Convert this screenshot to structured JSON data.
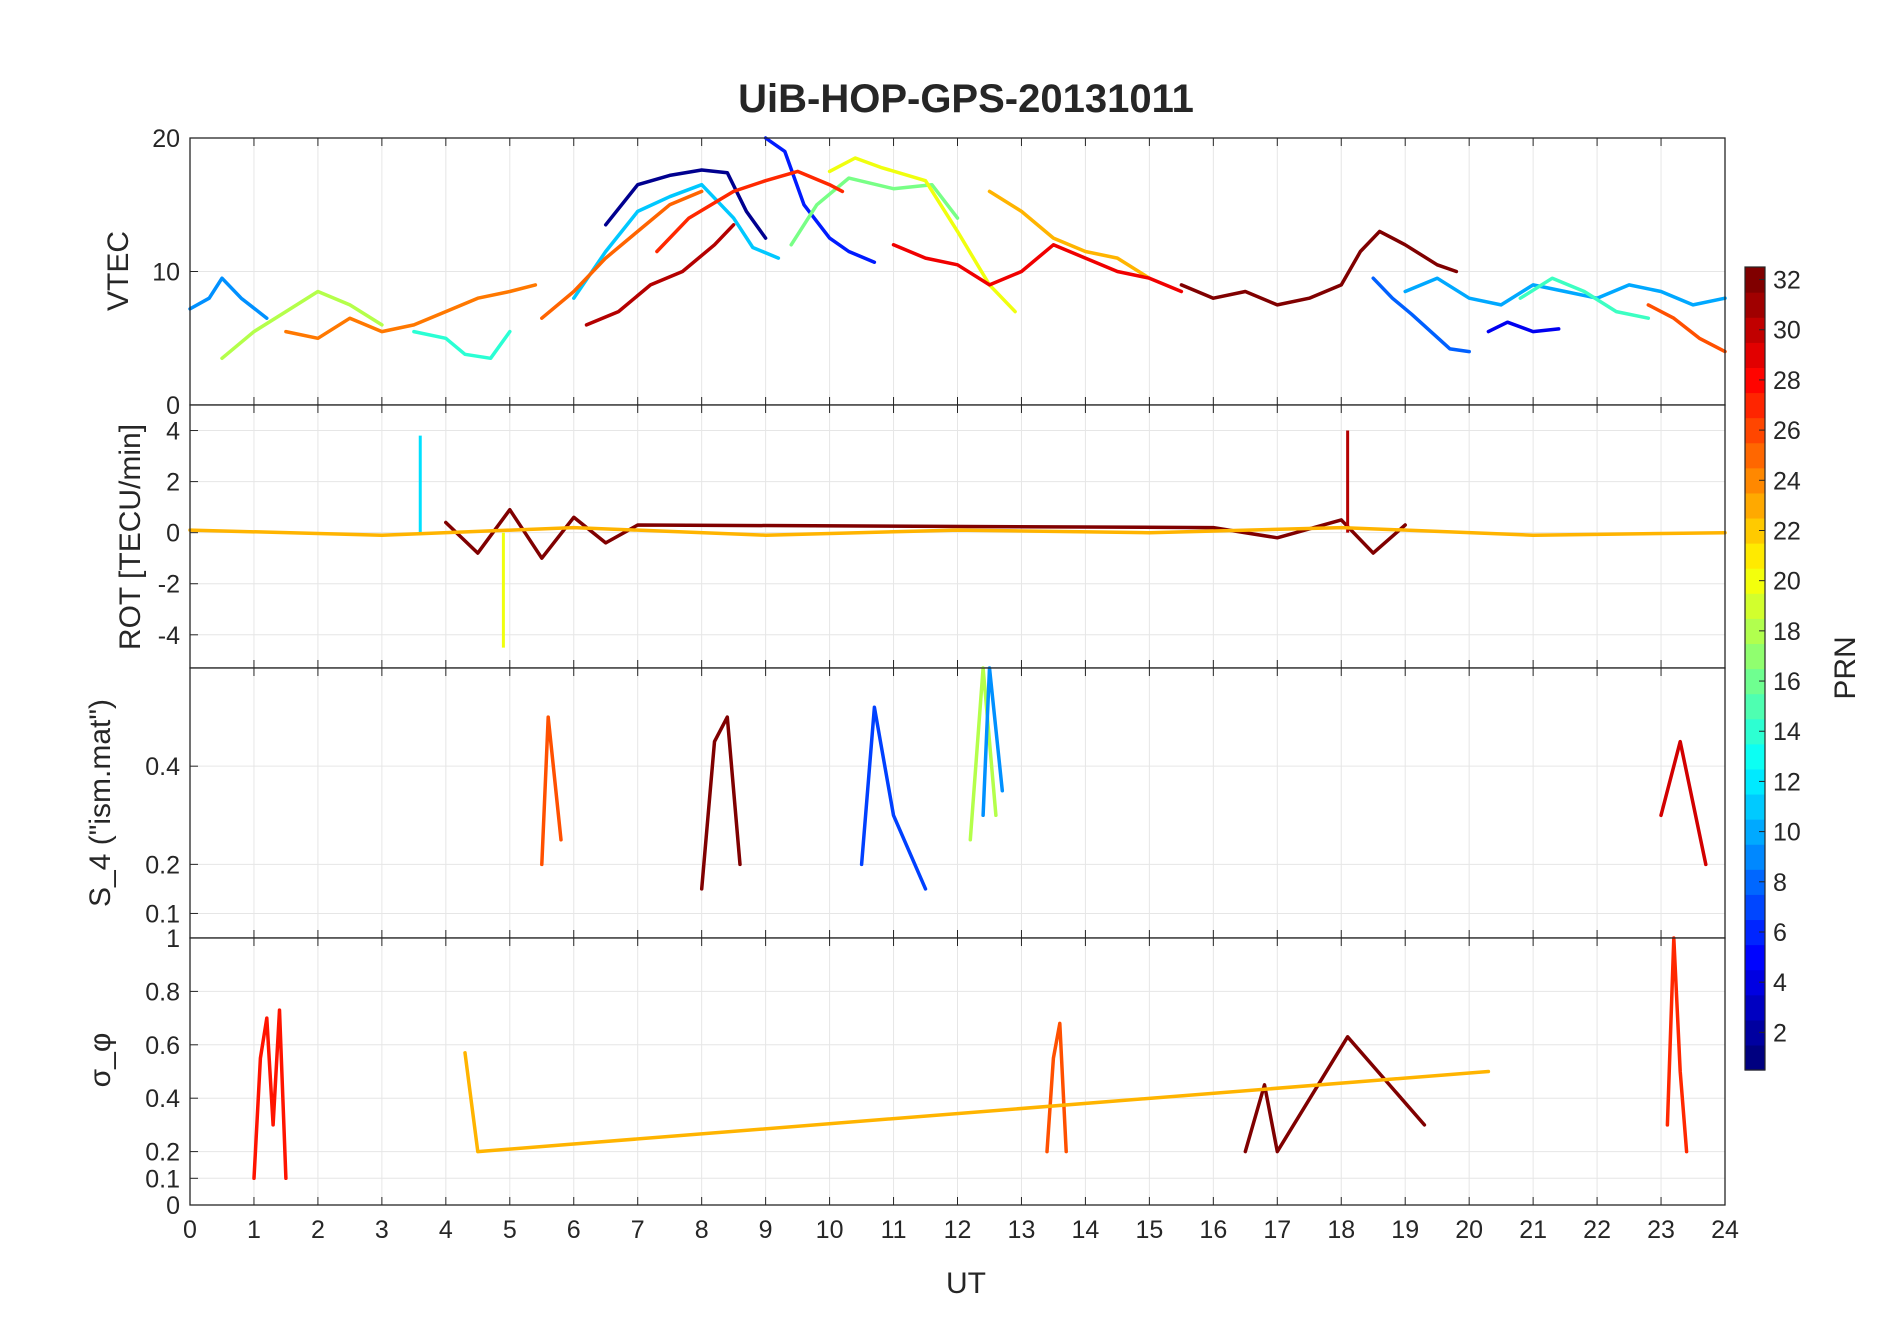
{
  "title": "UiB-HOP-GPS-20131011",
  "x_axis": {
    "label": "UT",
    "range": [
      0,
      24
    ],
    "ticks": [
      "0",
      "1",
      "2",
      "3",
      "4",
      "5",
      "6",
      "7",
      "8",
      "9",
      "10",
      "11",
      "12",
      "13",
      "14",
      "15",
      "16",
      "17",
      "18",
      "19",
      "20",
      "21",
      "22",
      "23",
      "24"
    ]
  },
  "colorbar": {
    "label": "PRN",
    "range": [
      1,
      32
    ],
    "colormap": "jet",
    "ticks": [
      "2",
      "4",
      "6",
      "8",
      "10",
      "12",
      "14",
      "16",
      "18",
      "20",
      "22",
      "24",
      "26",
      "28",
      "30",
      "32"
    ]
  },
  "chart_data": [
    {
      "type": "line",
      "ylabel": "VTEC",
      "ylim": [
        0,
        20
      ],
      "yticks": [
        "0",
        "10",
        "20"
      ],
      "grid": true,
      "series": [
        {
          "prn": 1,
          "color": "#00008f",
          "x": [
            6.5,
            7.0,
            7.5,
            8.0,
            8.4,
            8.7,
            9.0
          ],
          "y": [
            13.5,
            16.5,
            17.2,
            17.6,
            17.4,
            14.5,
            12.5
          ]
        },
        {
          "prn": 5,
          "color": "#001bff",
          "x": [
            9.0,
            9.3,
            9.6,
            10.0,
            10.3,
            10.7
          ],
          "y": [
            20.0,
            19.0,
            15.0,
            12.5,
            11.5,
            10.7
          ]
        },
        {
          "prn": 7,
          "color": "#0060ff",
          "x": [
            18.5,
            18.8,
            19.1,
            19.4,
            19.7,
            20.0
          ],
          "y": [
            9.5,
            8.0,
            6.8,
            5.5,
            4.2,
            4.0
          ]
        },
        {
          "prn": 9,
          "color": "#0090ff",
          "x": [
            0.0,
            0.3,
            0.5,
            0.8,
            1.2
          ],
          "y": [
            7.2,
            8.0,
            9.5,
            8.0,
            6.5
          ]
        },
        {
          "prn": 11,
          "color": "#00c8ff",
          "x": [
            6.0,
            6.5,
            7.0,
            7.5,
            8.0,
            8.5,
            8.8,
            9.2
          ],
          "y": [
            8.0,
            11.5,
            14.5,
            15.6,
            16.5,
            14.0,
            11.8,
            11.0
          ]
        },
        {
          "prn": 13,
          "color": "#2affd4",
          "x": [
            3.5,
            4.0,
            4.3,
            4.7,
            5.0
          ],
          "y": [
            5.5,
            5.0,
            3.8,
            3.5,
            5.5
          ]
        },
        {
          "prn": 16,
          "color": "#78ff86",
          "x": [
            9.4,
            9.8,
            10.3,
            11.0,
            11.6,
            12.0
          ],
          "y": [
            12.0,
            15.0,
            17.0,
            16.2,
            16.5,
            14.0
          ]
        },
        {
          "prn": 18,
          "color": "#b4ff4a",
          "x": [
            0.5,
            1.0,
            1.5,
            2.0,
            2.5,
            3.0
          ],
          "y": [
            3.5,
            5.5,
            7.0,
            8.5,
            7.5,
            6.0
          ]
        },
        {
          "prn": 20,
          "color": "#f0ff0e",
          "x": [
            10.0,
            10.4,
            10.8,
            11.5,
            12.0,
            12.5,
            12.9
          ],
          "y": [
            17.5,
            18.5,
            17.8,
            16.8,
            13.0,
            9.0,
            7.0
          ]
        },
        {
          "prn": 22,
          "color": "#ffb400",
          "x": [
            12.5,
            13.0,
            13.5,
            14.0,
            14.5,
            15.0
          ],
          "y": [
            16.0,
            14.5,
            12.5,
            11.5,
            11.0,
            9.5
          ]
        },
        {
          "prn": 24,
          "color": "#ff7800",
          "x": [
            1.5,
            2.0,
            2.5,
            3.0,
            3.5,
            4.0,
            4.5,
            5.0,
            5.4
          ],
          "y": [
            5.5,
            5.0,
            6.5,
            5.5,
            6.0,
            7.0,
            8.0,
            8.5,
            9.0
          ]
        },
        {
          "prn": 25,
          "color": "#ff6400",
          "x": [
            5.5,
            6.0,
            6.5,
            7.0,
            7.5,
            8.0
          ],
          "y": [
            6.5,
            8.5,
            11.0,
            13.0,
            15.0,
            16.0
          ]
        },
        {
          "prn": 27,
          "color": "#ff2800",
          "x": [
            7.3,
            7.8,
            8.5,
            9.0,
            9.5,
            10.0,
            10.2
          ],
          "y": [
            11.5,
            14.0,
            16.0,
            16.8,
            17.5,
            16.5,
            16.0
          ]
        },
        {
          "prn": 28,
          "color": "#f00000",
          "x": [
            11.0,
            11.5,
            12.0,
            12.5,
            13.0,
            13.5,
            14.0,
            14.5,
            15.0,
            15.5
          ],
          "y": [
            12.0,
            11.0,
            10.5,
            9.0,
            10.0,
            12.0,
            11.0,
            10.0,
            9.5,
            8.5
          ]
        },
        {
          "prn": 30,
          "color": "#b40000",
          "x": [
            6.2,
            6.7,
            7.2,
            7.7,
            8.2,
            8.5
          ],
          "y": [
            6.0,
            7.0,
            9.0,
            10.0,
            12.0,
            13.5
          ]
        },
        {
          "prn": 32,
          "color": "#800000",
          "x": [
            15.5,
            16.0,
            16.5,
            17.0,
            17.5,
            18.0,
            18.3,
            18.6,
            19.0,
            19.5,
            19.8
          ],
          "y": [
            9.0,
            8.0,
            8.5,
            7.5,
            8.0,
            9.0,
            11.5,
            13.0,
            12.0,
            10.5,
            10.0
          ]
        },
        {
          "prn": 10,
          "color": "#00a8ff",
          "x": [
            19.0,
            19.5,
            20.0,
            20.5,
            21.0,
            21.5,
            22.0,
            22.5,
            23.0,
            23.5,
            24.0
          ],
          "y": [
            8.5,
            9.5,
            8.0,
            7.5,
            9.0,
            8.5,
            8.0,
            9.0,
            8.5,
            7.5,
            8.0
          ]
        },
        {
          "prn": 14,
          "color": "#3cffc2",
          "x": [
            20.8,
            21.3,
            21.8,
            22.3,
            22.8
          ],
          "y": [
            8.0,
            9.5,
            8.5,
            7.0,
            6.5
          ]
        },
        {
          "prn": 26,
          "color": "#ff5000",
          "x": [
            22.8,
            23.2,
            23.6,
            24.0
          ],
          "y": [
            7.5,
            6.5,
            5.0,
            4.0
          ]
        },
        {
          "prn": 4,
          "color": "#0000f0",
          "x": [
            20.3,
            20.6,
            21.0,
            21.4
          ],
          "y": [
            5.5,
            6.2,
            5.5,
            5.7
          ]
        }
      ]
    },
    {
      "type": "line",
      "ylabel": "ROT [TECU/min]",
      "ylim": [
        -5.3,
        5.0
      ],
      "yticks": [
        "-4",
        "-2",
        "0",
        "2",
        "4"
      ],
      "grid": true,
      "series": [
        {
          "prn": 32,
          "color": "#800000",
          "x": [
            4.0,
            4.5,
            5.0,
            5.5,
            6.0,
            6.5,
            7.0,
            16.0,
            17.0,
            18.0,
            18.5,
            19.0
          ],
          "y": [
            0.4,
            -0.8,
            0.9,
            -1.0,
            0.6,
            -0.4,
            0.3,
            0.2,
            -0.2,
            0.5,
            -0.8,
            0.3
          ]
        },
        {
          "prn": 20,
          "color": "#f0ff0e",
          "x": [
            4.9
          ],
          "y": [
            -4.5
          ]
        },
        {
          "prn": 30,
          "color": "#b40000",
          "x": [
            18.1
          ],
          "y": [
            4.0
          ]
        },
        {
          "prn": 12,
          "color": "#00e0ff",
          "x": [
            3.6
          ],
          "y": [
            3.8
          ]
        },
        {
          "prn": 22,
          "color": "#ffb400",
          "x": [
            0.0,
            3.0,
            6.0,
            9.0,
            12.0,
            15.0,
            18.0,
            21.0,
            24.0
          ],
          "y": [
            0.1,
            -0.1,
            0.2,
            -0.1,
            0.1,
            0.0,
            0.2,
            -0.1,
            0.0
          ]
        }
      ]
    },
    {
      "type": "line",
      "ylabel": "S_4 (\"ism.mat\")",
      "ylim": [
        0.05,
        0.6
      ],
      "yticks": [
        "0.1",
        "0.2",
        "0.4"
      ],
      "grid": true,
      "series": [
        {
          "prn": 6,
          "color": "#0040ff",
          "x": [
            10.5,
            10.7,
            11.0,
            11.5
          ],
          "y": [
            0.2,
            0.52,
            0.3,
            0.15
          ]
        },
        {
          "prn": 18,
          "color": "#b4ff4a",
          "x": [
            12.2,
            12.4,
            12.6
          ],
          "y": [
            0.25,
            0.6,
            0.3
          ]
        },
        {
          "prn": 9,
          "color": "#0090ff",
          "x": [
            12.4,
            12.5,
            12.7
          ],
          "y": [
            0.3,
            0.6,
            0.35
          ]
        },
        {
          "prn": 32,
          "color": "#800000",
          "x": [
            8.0,
            8.2,
            8.4,
            8.6
          ],
          "y": [
            0.15,
            0.45,
            0.5,
            0.2
          ]
        },
        {
          "prn": 26,
          "color": "#ff5000",
          "x": [
            5.5,
            5.6,
            5.8
          ],
          "y": [
            0.2,
            0.5,
            0.25
          ]
        },
        {
          "prn": 29,
          "color": "#d20000",
          "x": [
            23.0,
            23.3,
            23.7
          ],
          "y": [
            0.3,
            0.45,
            0.2
          ]
        }
      ]
    },
    {
      "type": "line",
      "ylabel": "σ_φ",
      "ylim": [
        0,
        1
      ],
      "yticks": [
        "0",
        "0.1",
        "0.2",
        "0.4",
        "0.6",
        "0.8",
        "1"
      ],
      "grid": true,
      "series": [
        {
          "prn": 28,
          "color": "#ff1400",
          "x": [
            1.0,
            1.1,
            1.2,
            1.3,
            1.4,
            1.5
          ],
          "y": [
            0.1,
            0.55,
            0.7,
            0.3,
            0.73,
            0.1
          ]
        },
        {
          "prn": 26,
          "color": "#ff5000",
          "x": [
            13.4,
            13.5,
            13.6,
            13.7
          ],
          "y": [
            0.2,
            0.55,
            0.68,
            0.2
          ]
        },
        {
          "prn": 27,
          "color": "#ff2800",
          "x": [
            23.1,
            23.2,
            23.3,
            23.4
          ],
          "y": [
            0.3,
            1.0,
            0.5,
            0.2
          ]
        },
        {
          "prn": 32,
          "color": "#800000",
          "x": [
            16.5,
            16.8,
            17.0,
            18.1,
            19.3
          ],
          "y": [
            0.2,
            0.45,
            0.2,
            0.63,
            0.3
          ]
        },
        {
          "prn": 22,
          "color": "#ffb400",
          "x": [
            4.3,
            4.5,
            20.3
          ],
          "y": [
            0.57,
            0.2,
            0.5
          ]
        }
      ]
    }
  ]
}
